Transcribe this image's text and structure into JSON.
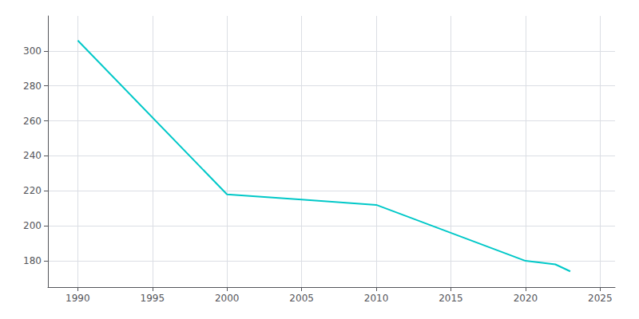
{
  "chart_data": {
    "type": "line",
    "x": [
      1990,
      2000,
      2005,
      2010,
      2020,
      2022,
      2023
    ],
    "values": [
      306,
      218,
      215,
      212,
      180,
      178,
      174
    ],
    "color": "#00C8C8",
    "xlim": [
      1988,
      2026
    ],
    "ylim": [
      165,
      320
    ],
    "xticks": [
      1990,
      1995,
      2000,
      2005,
      2010,
      2015,
      2020,
      2025
    ],
    "yticks": [
      180,
      200,
      220,
      240,
      260,
      280,
      300
    ],
    "grid": true
  }
}
